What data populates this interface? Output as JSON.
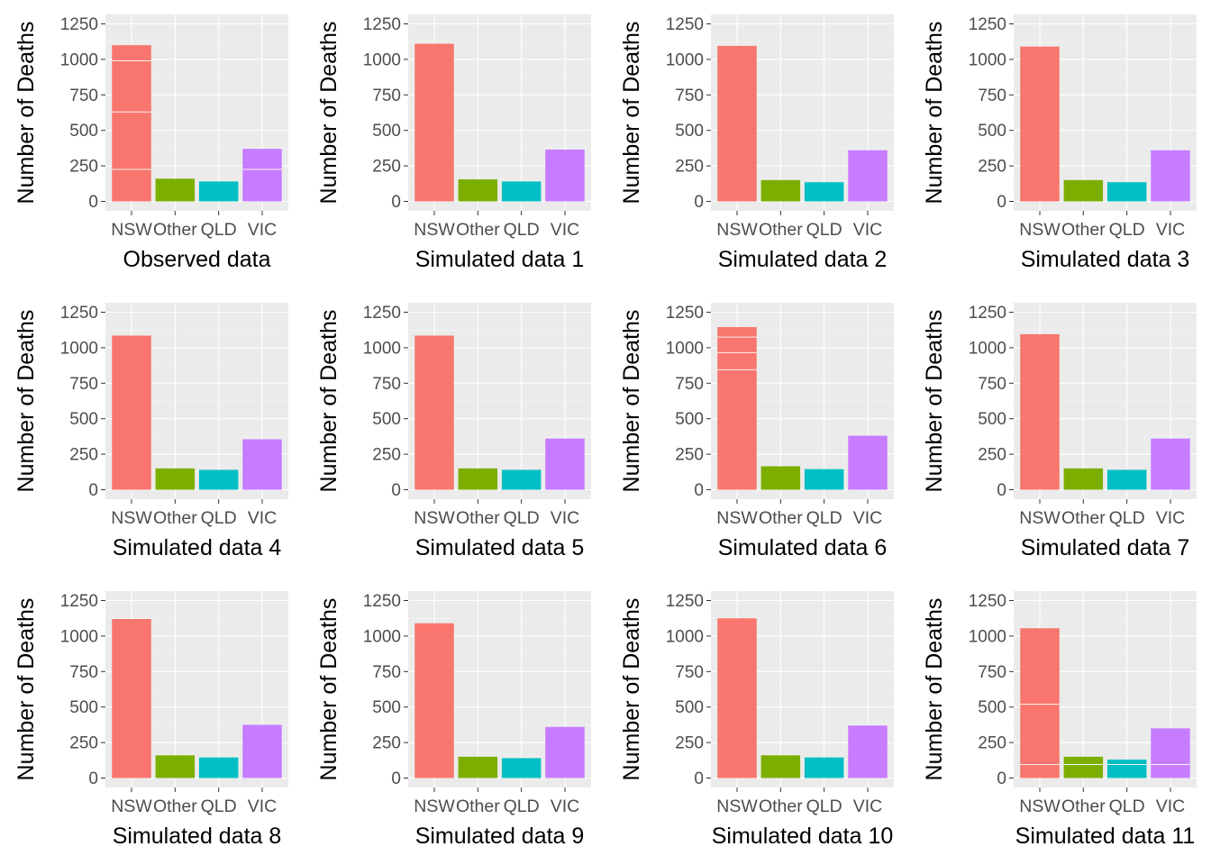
{
  "chart_data": {
    "type": "bar",
    "grid": true,
    "legend": "none",
    "categories": [
      "NSW",
      "Other",
      "QLD",
      "VIC"
    ],
    "colors": [
      "#F8766D",
      "#7CAE00",
      "#00BFC4",
      "#C77CFF"
    ],
    "highlight_color": "#FF0000",
    "ylabel": "Number of Deaths",
    "ylim": [
      0,
      1250
    ],
    "yticks": [
      0,
      250,
      500,
      750,
      1000,
      1250
    ],
    "panels": [
      {
        "xlabel": "Observed data",
        "highlight": true,
        "values": [
          1100,
          160,
          140,
          370
        ],
        "segments": [
          [
            225,
            630,
            990
          ],
          [],
          [],
          [
            225
          ]
        ]
      },
      {
        "xlabel": "Simulated data 1",
        "highlight": false,
        "values": [
          1110,
          155,
          140,
          365
        ],
        "segments": [
          [],
          [],
          [],
          []
        ]
      },
      {
        "xlabel": "Simulated data 2",
        "highlight": false,
        "values": [
          1095,
          150,
          135,
          360
        ],
        "segments": [
          [],
          [],
          [],
          []
        ]
      },
      {
        "xlabel": "Simulated data 3",
        "highlight": false,
        "values": [
          1090,
          150,
          135,
          360
        ],
        "segments": [
          [],
          [],
          [],
          []
        ]
      },
      {
        "xlabel": "Simulated data 4",
        "highlight": false,
        "values": [
          1085,
          150,
          140,
          355
        ],
        "segments": [
          [],
          [],
          [],
          []
        ]
      },
      {
        "xlabel": "Simulated data 5",
        "highlight": false,
        "values": [
          1085,
          150,
          140,
          360
        ],
        "segments": [
          [],
          [],
          [],
          []
        ]
      },
      {
        "xlabel": "Simulated data 6",
        "highlight": false,
        "values": [
          1145,
          165,
          145,
          380
        ],
        "segments": [
          [
            845,
            965,
            1075
          ],
          [],
          [],
          []
        ]
      },
      {
        "xlabel": "Simulated data 7",
        "highlight": false,
        "values": [
          1095,
          150,
          140,
          360
        ],
        "segments": [
          [],
          [],
          [],
          []
        ]
      },
      {
        "xlabel": "Simulated data 8",
        "highlight": false,
        "values": [
          1120,
          160,
          145,
          375
        ],
        "segments": [
          [],
          [],
          [],
          []
        ]
      },
      {
        "xlabel": "Simulated data 9",
        "highlight": false,
        "values": [
          1090,
          150,
          140,
          360
        ],
        "segments": [
          [],
          [],
          [],
          []
        ]
      },
      {
        "xlabel": "Simulated data 10",
        "highlight": false,
        "values": [
          1125,
          160,
          145,
          370
        ],
        "segments": [
          [],
          [],
          [],
          []
        ]
      },
      {
        "xlabel": "Simulated data 11",
        "highlight": false,
        "values": [
          1055,
          150,
          130,
          350
        ],
        "segments": [
          [
            95,
            520
          ],
          [
            95
          ],
          [
            95
          ],
          [
            95
          ]
        ]
      }
    ]
  }
}
